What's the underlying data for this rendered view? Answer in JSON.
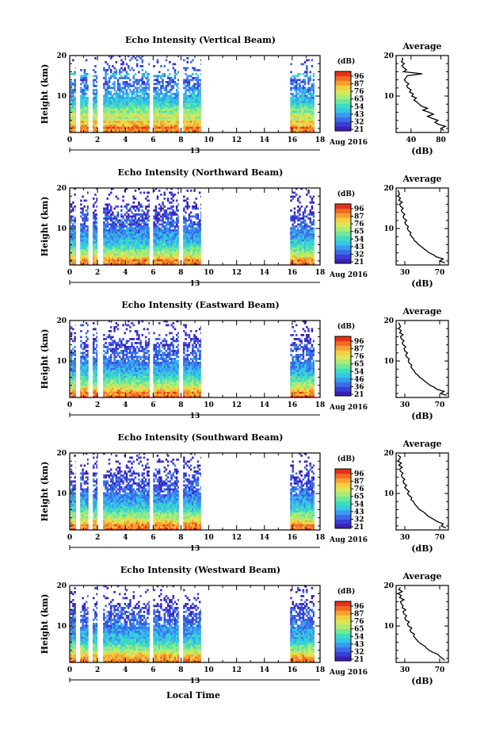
{
  "figure": {
    "xlabel": "Local Time",
    "date_label": "Aug 2016",
    "day_label": "13"
  },
  "colorbar": {
    "unit": "(dB)",
    "colors": [
      "#3b1fb5",
      "#3a3fd6",
      "#3a6ce8",
      "#3a9af0",
      "#33c8e6",
      "#40dcc0",
      "#6fe89a",
      "#a8ec78",
      "#d8e85a",
      "#f4d040",
      "#f6a032",
      "#f26a24",
      "#e83018"
    ]
  },
  "chart_data": [
    {
      "type": "heatmap",
      "title": "Echo Intensity (Vertical Beam)",
      "ylabel": "Height (km)",
      "x_ticks": [
        "0",
        "2",
        "4",
        "6",
        "8",
        "10",
        "12",
        "14",
        "16",
        "18"
      ],
      "y_ticks": [
        "10",
        "20"
      ],
      "xlim": [
        0,
        18
      ],
      "ylim": [
        1,
        20
      ],
      "colorbar_ticks": [
        "96",
        "87",
        "76",
        "65",
        "54",
        "43",
        "32",
        "21"
      ],
      "data_intervals_hours": [
        [
          0.05,
          0.45
        ],
        [
          0.75,
          1.35
        ],
        [
          1.65,
          2.0
        ],
        [
          2.4,
          5.75
        ],
        [
          6.0,
          7.85
        ],
        [
          8.15,
          9.45
        ],
        [
          15.85,
          17.6
        ]
      ],
      "profile": {
        "title": "Average",
        "xlabel": "(dB)",
        "x_ticks": [
          "40",
          "80"
        ],
        "y_ticks": [
          "10",
          "20"
        ],
        "xlim": [
          20,
          90
        ],
        "ylim": [
          1,
          20
        ],
        "height_km": [
          1.5,
          2,
          2.5,
          3,
          3.5,
          4,
          4.5,
          5,
          5.5,
          6,
          6.5,
          7,
          7.5,
          8,
          8.5,
          9,
          9.5,
          10,
          10.5,
          11,
          11.5,
          12,
          12.5,
          13,
          13.5,
          14,
          14.5,
          15,
          15.5,
          16,
          16.5,
          17,
          17.5,
          18,
          18.5,
          19,
          19.5
        ],
        "values_db": [
          84,
          80,
          86,
          77,
          72,
          76,
          68,
          62,
          70,
          64,
          56,
          62,
          54,
          51,
          48,
          44,
          47,
          41,
          43,
          38,
          40,
          36,
          34,
          37,
          33,
          31,
          33,
          35,
          55,
          30,
          34,
          30,
          28,
          31,
          27,
          29,
          28
        ]
      }
    },
    {
      "type": "heatmap",
      "title": "Echo Intensity (Northward Beam)",
      "ylabel": "Height (km)",
      "x_ticks": [
        "0",
        "2",
        "4",
        "6",
        "8",
        "10",
        "12",
        "14",
        "16",
        "18"
      ],
      "y_ticks": [
        "10",
        "20"
      ],
      "xlim": [
        0,
        18
      ],
      "ylim": [
        1,
        20
      ],
      "colorbar_ticks": [
        "96",
        "87",
        "76",
        "65",
        "54",
        "43",
        "32",
        "21"
      ],
      "data_intervals_hours": [
        [
          0.05,
          0.45
        ],
        [
          0.75,
          1.35
        ],
        [
          1.65,
          2.0
        ],
        [
          2.4,
          5.75
        ],
        [
          6.0,
          7.85
        ],
        [
          8.15,
          9.45
        ],
        [
          15.85,
          17.6
        ]
      ],
      "profile": {
        "title": "Average",
        "xlabel": "(dB)",
        "x_ticks": [
          "30",
          "70"
        ],
        "y_ticks": [
          "10",
          "20"
        ],
        "xlim": [
          20,
          80
        ],
        "ylim": [
          1,
          20
        ],
        "height_km": [
          1.5,
          2,
          2.5,
          3,
          3.5,
          4,
          4.5,
          5,
          5.5,
          6,
          6.5,
          7,
          7.5,
          8,
          8.5,
          9,
          9.5,
          10,
          10.5,
          11,
          11.5,
          12,
          12.5,
          13,
          13.5,
          14,
          14.5,
          15,
          15.5,
          16,
          16.5,
          17,
          17.5,
          18,
          18.5,
          19,
          19.5
        ],
        "values_db": [
          76,
          70,
          74,
          66,
          63,
          58,
          55,
          52,
          49,
          46,
          44,
          41,
          40,
          38,
          36,
          37,
          34,
          33,
          34,
          31,
          30,
          32,
          29,
          28,
          30,
          27,
          26,
          28,
          25,
          24,
          27,
          23,
          25,
          22,
          24,
          23,
          22
        ]
      }
    },
    {
      "type": "heatmap",
      "title": "Echo Intensity (Eastward Beam)",
      "ylabel": "Height (km)",
      "x_ticks": [
        "0",
        "2",
        "4",
        "6",
        "8",
        "10",
        "12",
        "14",
        "16",
        "18"
      ],
      "y_ticks": [
        "10",
        "20"
      ],
      "xlim": [
        0,
        18
      ],
      "ylim": [
        1,
        20
      ],
      "colorbar_ticks": [
        "96",
        "87",
        "76",
        "65",
        "54",
        "46",
        "36",
        "21"
      ],
      "data_intervals_hours": [
        [
          0.05,
          0.45
        ],
        [
          0.75,
          1.35
        ],
        [
          1.65,
          2.0
        ],
        [
          2.4,
          5.75
        ],
        [
          6.0,
          7.85
        ],
        [
          8.15,
          9.45
        ],
        [
          15.85,
          17.6
        ]
      ],
      "profile": {
        "title": "Average",
        "xlabel": "(dB)",
        "x_ticks": [
          "30",
          "70"
        ],
        "y_ticks": [
          "10",
          "20"
        ],
        "xlim": [
          20,
          80
        ],
        "ylim": [
          1,
          20
        ],
        "height_km": [
          1.5,
          2,
          2.5,
          3,
          3.5,
          4,
          4.5,
          5,
          5.5,
          6,
          6.5,
          7,
          7.5,
          8,
          8.5,
          9,
          9.5,
          10,
          10.5,
          11,
          11.5,
          12,
          12.5,
          13,
          13.5,
          14,
          14.5,
          15,
          15.5,
          16,
          16.5,
          17,
          17.5,
          18,
          18.5,
          19,
          19.5
        ],
        "values_db": [
          78,
          71,
          75,
          67,
          64,
          59,
          56,
          53,
          50,
          47,
          45,
          42,
          41,
          39,
          37,
          38,
          35,
          34,
          35,
          32,
          31,
          33,
          30,
          29,
          31,
          28,
          27,
          29,
          26,
          25,
          28,
          24,
          26,
          23,
          25,
          24,
          23
        ]
      }
    },
    {
      "type": "heatmap",
      "title": "Echo Intensity (Southward Beam)",
      "ylabel": "Height (km)",
      "x_ticks": [
        "0",
        "2",
        "4",
        "6",
        "8",
        "10",
        "12",
        "14",
        "16",
        "18"
      ],
      "y_ticks": [
        "10",
        "20"
      ],
      "xlim": [
        0,
        18
      ],
      "ylim": [
        1,
        20
      ],
      "colorbar_ticks": [
        "96",
        "87",
        "76",
        "65",
        "54",
        "43",
        "32",
        "21"
      ],
      "data_intervals_hours": [
        [
          0.05,
          0.45
        ],
        [
          0.75,
          1.35
        ],
        [
          1.65,
          2.0
        ],
        [
          2.4,
          5.75
        ],
        [
          6.0,
          7.85
        ],
        [
          8.15,
          9.45
        ],
        [
          15.85,
          17.6
        ]
      ],
      "profile": {
        "title": "Average",
        "xlabel": "(dB)",
        "x_ticks": [
          "30",
          "70"
        ],
        "y_ticks": [
          "10",
          "20"
        ],
        "xlim": [
          20,
          80
        ],
        "ylim": [
          1,
          20
        ],
        "height_km": [
          1.5,
          2,
          2.5,
          3,
          3.5,
          4,
          4.5,
          5,
          5.5,
          6,
          6.5,
          7,
          7.5,
          8,
          8.5,
          9,
          9.5,
          10,
          10.5,
          11,
          11.5,
          12,
          12.5,
          13,
          13.5,
          14,
          14.5,
          15,
          15.5,
          16,
          16.5,
          17,
          17.5,
          18,
          18.5,
          19,
          19.5
        ],
        "values_db": [
          77,
          72,
          74,
          68,
          64,
          60,
          56,
          54,
          51,
          47,
          45,
          43,
          41,
          40,
          37,
          38,
          35,
          33,
          35,
          32,
          30,
          32,
          29,
          28,
          30,
          27,
          26,
          28,
          25,
          24,
          27,
          23,
          26,
          22,
          24,
          25,
          22
        ]
      }
    },
    {
      "type": "heatmap",
      "title": "Echo Intensity (Westward Beam)",
      "ylabel": "Height (km)",
      "x_ticks": [
        "0",
        "2",
        "4",
        "6",
        "8",
        "10",
        "12",
        "14",
        "16",
        "18"
      ],
      "y_ticks": [
        "10",
        "20"
      ],
      "xlim": [
        0,
        18
      ],
      "ylim": [
        1,
        20
      ],
      "colorbar_ticks": [
        "96",
        "87",
        "76",
        "65",
        "54",
        "43",
        "32",
        "21"
      ],
      "data_intervals_hours": [
        [
          0.05,
          0.45
        ],
        [
          0.75,
          1.35
        ],
        [
          1.65,
          2.0
        ],
        [
          2.4,
          5.75
        ],
        [
          6.0,
          7.85
        ],
        [
          8.15,
          9.45
        ],
        [
          15.85,
          17.6
        ]
      ],
      "profile": {
        "title": "Average",
        "xlabel": "(dB)",
        "x_ticks": [
          "30",
          "70"
        ],
        "y_ticks": [
          "10",
          "20"
        ],
        "xlim": [
          20,
          80
        ],
        "ylim": [
          1,
          20
        ],
        "height_km": [
          1.5,
          2,
          2.5,
          3,
          3.5,
          4,
          4.5,
          5,
          5.5,
          6,
          6.5,
          7,
          7.5,
          8,
          8.5,
          9,
          9.5,
          10,
          10.5,
          11,
          11.5,
          12,
          12.5,
          13,
          13.5,
          14,
          14.5,
          15,
          15.5,
          16,
          16.5,
          17,
          17.5,
          18,
          18.5,
          19,
          19.5
        ],
        "values_db": [
          76,
          73,
          70,
          68,
          62,
          58,
          55,
          53,
          49,
          46,
          44,
          42,
          40,
          41,
          37,
          36,
          38,
          34,
          33,
          35,
          31,
          30,
          32,
          29,
          28,
          31,
          27,
          28,
          26,
          25,
          29,
          24,
          26,
          22,
          27,
          23,
          25
        ]
      }
    }
  ]
}
